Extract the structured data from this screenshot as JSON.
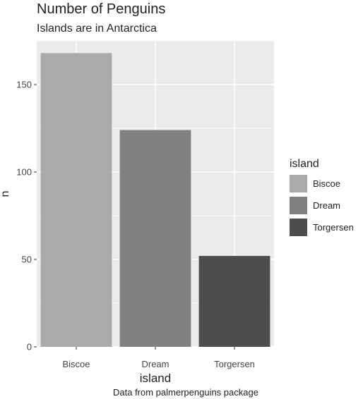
{
  "chart_data": {
    "type": "bar",
    "title": "Number of Penguins",
    "subtitle": "Islands are in Antarctica",
    "caption": "Data from palmerpenguins package",
    "xlabel": "island",
    "ylabel": "n",
    "categories": [
      "Biscoe",
      "Dream",
      "Torgersen"
    ],
    "values": [
      168,
      124,
      52
    ],
    "colors": [
      "#aaaaaa",
      "#808080",
      "#4d4d4d"
    ],
    "ylim": [
      0,
      175
    ],
    "yticks": [
      0,
      50,
      100,
      150
    ],
    "grid": true,
    "background": "#ebebeb",
    "legend": {
      "title": "island",
      "placement": "right",
      "entries": [
        "Biscoe",
        "Dream",
        "Torgersen"
      ]
    }
  }
}
